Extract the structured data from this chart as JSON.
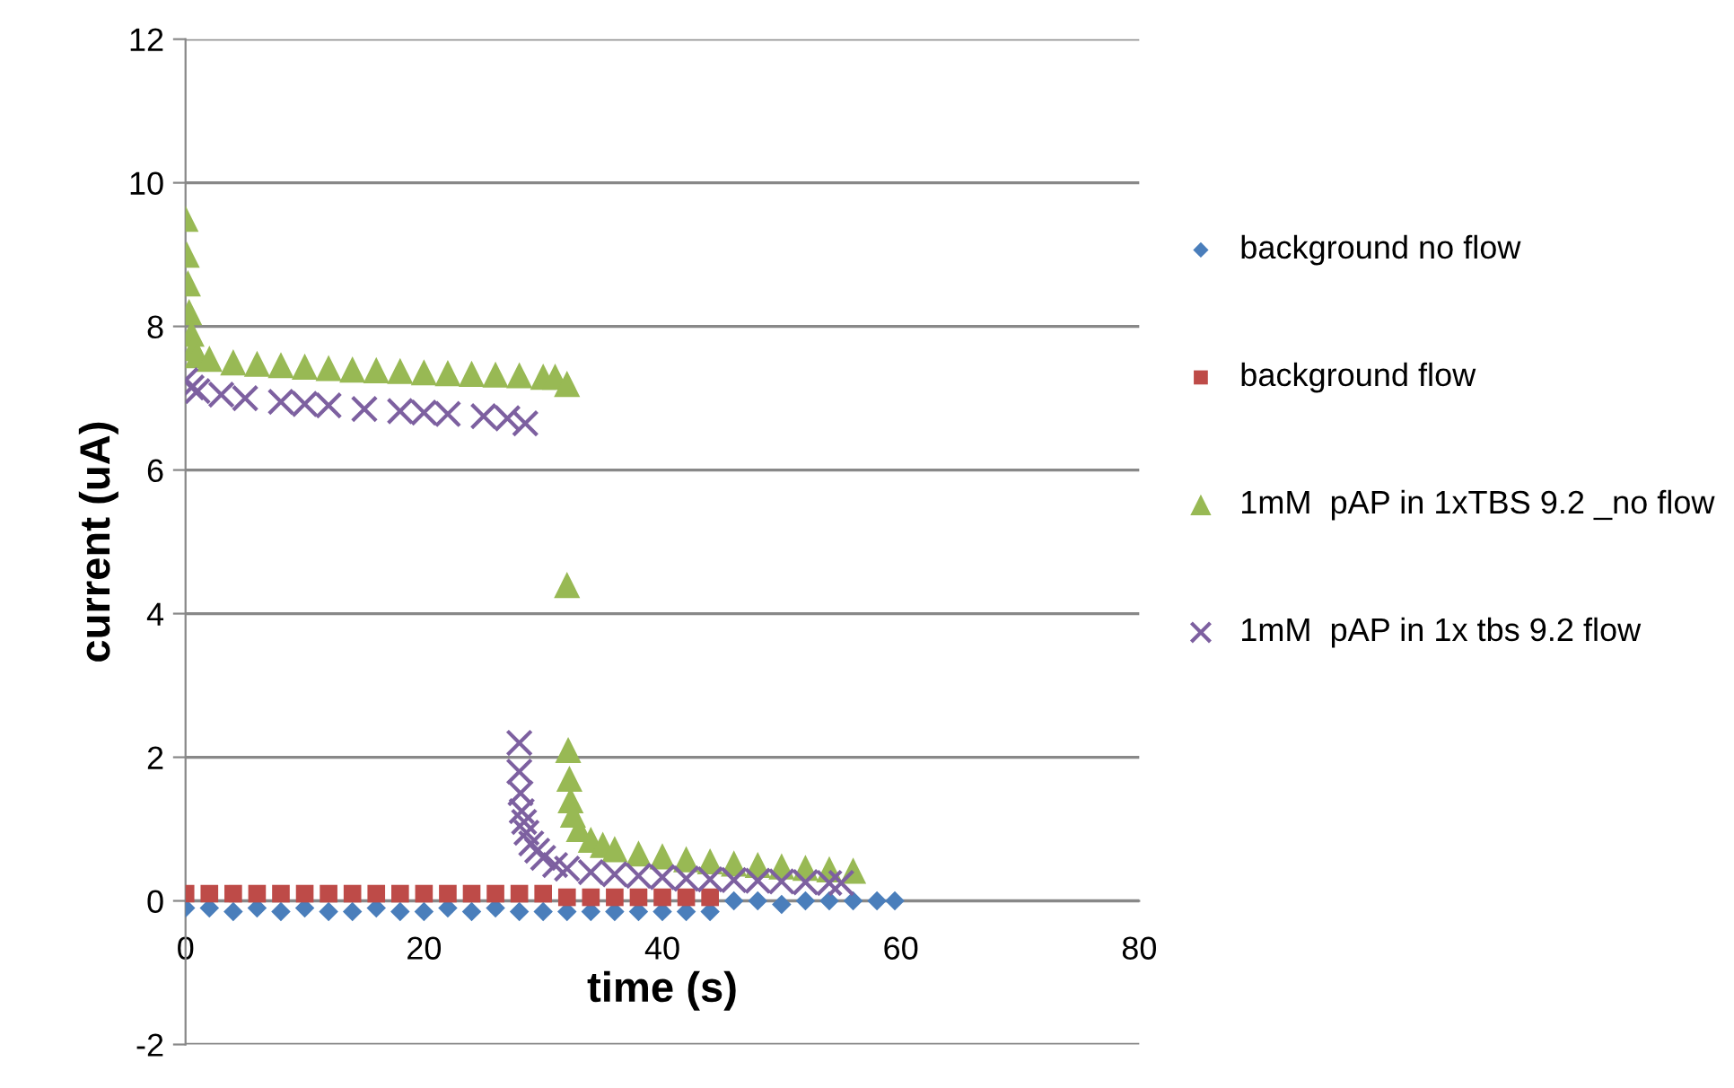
{
  "chart_data": {
    "type": "scatter",
    "xlabel": "time (s)",
    "ylabel": "current (uA)",
    "xlim": [
      0,
      80
    ],
    "ylim": [
      -2,
      12
    ],
    "xticks": [
      0,
      20,
      40,
      60,
      80
    ],
    "yticks": [
      -2,
      0,
      2,
      4,
      6,
      8,
      10,
      12
    ],
    "grid": "y",
    "legend": "right",
    "series": [
      {
        "name": "background no flow",
        "color": "#4a7ebb",
        "marker": "diamond",
        "x": [
          0,
          2,
          4,
          6,
          8,
          10,
          12,
          14,
          16,
          18,
          20,
          22,
          24,
          26,
          28,
          30,
          32,
          34,
          36,
          38,
          40,
          42,
          44,
          46,
          48,
          50,
          52,
          54,
          56,
          58,
          59.5
        ],
        "values": [
          -0.1,
          -0.1,
          -0.15,
          -0.1,
          -0.15,
          -0.1,
          -0.15,
          -0.15,
          -0.1,
          -0.15,
          -0.15,
          -0.1,
          -0.15,
          -0.1,
          -0.15,
          -0.15,
          -0.15,
          -0.15,
          -0.15,
          -0.15,
          -0.15,
          -0.15,
          -0.15,
          0.0,
          0.0,
          -0.05,
          0.0,
          0.0,
          0.0,
          0.0,
          0.0
        ]
      },
      {
        "name": "background flow",
        "color": "#be4b48",
        "marker": "square",
        "x": [
          0,
          2,
          4,
          6,
          8,
          10,
          12,
          14,
          16,
          18,
          20,
          22,
          24,
          26,
          28,
          30,
          32,
          34,
          36,
          38,
          40,
          42,
          44
        ],
        "values": [
          0.1,
          0.1,
          0.1,
          0.1,
          0.1,
          0.1,
          0.1,
          0.1,
          0.1,
          0.1,
          0.1,
          0.1,
          0.1,
          0.1,
          0.1,
          0.1,
          0.05,
          0.05,
          0.05,
          0.05,
          0.05,
          0.05,
          0.05
        ]
      },
      {
        "name": "1mM  pAP in 1xTBS 9.2 _no flow",
        "color": "#98b954",
        "marker": "triangle",
        "x": [
          0,
          0.1,
          0.2,
          0.3,
          0.5,
          0.7,
          1,
          2,
          4,
          6,
          8,
          10,
          12,
          14,
          16,
          18,
          20,
          22,
          24,
          26,
          28,
          30,
          31,
          32,
          32,
          32.1,
          32.2,
          32.3,
          32.5,
          33,
          34,
          35,
          36,
          38,
          40,
          42,
          44,
          46,
          48,
          50,
          52,
          54,
          56
        ],
        "values": [
          9.5,
          9.0,
          8.6,
          8.2,
          7.9,
          7.7,
          7.6,
          7.55,
          7.5,
          7.48,
          7.46,
          7.44,
          7.42,
          7.4,
          7.39,
          7.38,
          7.36,
          7.35,
          7.34,
          7.33,
          7.32,
          7.3,
          7.3,
          7.2,
          4.4,
          2.1,
          1.7,
          1.4,
          1.2,
          1.0,
          0.85,
          0.78,
          0.72,
          0.66,
          0.62,
          0.58,
          0.55,
          0.52,
          0.5,
          0.48,
          0.46,
          0.44,
          0.42
        ]
      },
      {
        "name": "1mM  pAP in 1x tbs 9.2 flow",
        "color": "#7d60a0",
        "marker": "cross",
        "x": [
          0,
          0.5,
          1,
          3,
          5,
          8,
          10,
          12,
          15,
          18,
          20,
          22,
          25,
          27,
          28.5,
          28,
          28,
          28.1,
          28.2,
          28.4,
          28.6,
          29,
          29.5,
          30,
          31,
          32,
          34,
          36,
          38,
          40,
          42,
          44,
          46,
          48,
          50,
          52,
          54,
          55
        ],
        "values": [
          7.25,
          7.15,
          7.1,
          7.05,
          7.0,
          6.95,
          6.92,
          6.9,
          6.85,
          6.82,
          6.8,
          6.78,
          6.75,
          6.72,
          6.65,
          2.2,
          1.8,
          1.5,
          1.25,
          1.1,
          0.95,
          0.8,
          0.7,
          0.6,
          0.5,
          0.45,
          0.4,
          0.37,
          0.35,
          0.33,
          0.31,
          0.3,
          0.29,
          0.28,
          0.27,
          0.26,
          0.25,
          0.25
        ]
      }
    ]
  }
}
